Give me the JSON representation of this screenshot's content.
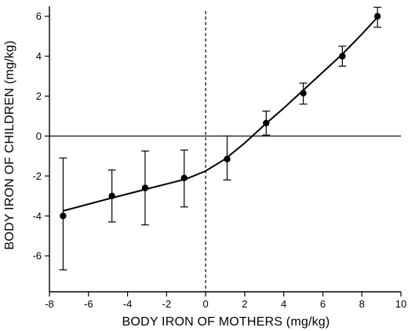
{
  "chart_data": {
    "type": "scatter",
    "xlabel": "BODY IRON OF MOTHERS (mg/kg)",
    "ylabel": "BODY IRON OF CHILDREN (mg/kg)",
    "xlim": [
      -8,
      10
    ],
    "ylim": [
      -7.8,
      6.5
    ],
    "x_ticks": [
      -8,
      -6,
      -4,
      -2,
      0,
      2,
      4,
      6,
      8,
      10
    ],
    "y_ticks": [
      -6,
      -4,
      -2,
      0,
      2,
      4,
      6
    ],
    "x_tick_labels": [
      "-8",
      "-6",
      "-4",
      "-2",
      "0",
      "2",
      "4",
      "6",
      "8",
      "10"
    ],
    "y_tick_labels": [
      "-6",
      "-4",
      "-2",
      "0",
      "2",
      "4",
      "6"
    ],
    "reference_lines": {
      "horizontal_solid_at_y": 0,
      "vertical_dashed_at_x": 0
    },
    "series": [
      {
        "points": [
          {
            "x": -7.3,
            "y": -4.0,
            "err_low": -6.7,
            "err_high": -1.1
          },
          {
            "x": -4.8,
            "y": -3.0,
            "err_low": -4.3,
            "err_high": -1.7
          },
          {
            "x": -3.1,
            "y": -2.6,
            "err_low": -4.45,
            "err_high": -0.75
          },
          {
            "x": -1.1,
            "y": -2.1,
            "err_low": -3.55,
            "err_high": -0.7
          },
          {
            "x": 1.1,
            "y": -1.15,
            "err_low": -2.2,
            "err_high": 0.0
          },
          {
            "x": 3.1,
            "y": 0.65,
            "err_low": 0.05,
            "err_high": 1.25
          },
          {
            "x": 5.0,
            "y": 2.15,
            "err_low": 1.6,
            "err_high": 2.65
          },
          {
            "x": 7.0,
            "y": 4.0,
            "err_low": 3.5,
            "err_high": 4.5
          },
          {
            "x": 8.8,
            "y": 6.0,
            "err_low": 5.45,
            "err_high": 6.45
          }
        ]
      }
    ],
    "fit_curve": [
      {
        "x": -7.3,
        "y": -3.75
      },
      {
        "x": -5.0,
        "y": -3.15
      },
      {
        "x": -3.0,
        "y": -2.65
      },
      {
        "x": -1.0,
        "y": -2.15
      },
      {
        "x": 0.0,
        "y": -1.75
      },
      {
        "x": 1.0,
        "y": -1.15
      },
      {
        "x": 2.0,
        "y": -0.35
      },
      {
        "x": 3.0,
        "y": 0.55
      },
      {
        "x": 4.0,
        "y": 1.4
      },
      {
        "x": 5.0,
        "y": 2.3
      },
      {
        "x": 6.0,
        "y": 3.2
      },
      {
        "x": 7.0,
        "y": 4.1
      },
      {
        "x": 8.0,
        "y": 5.1
      },
      {
        "x": 8.8,
        "y": 5.95
      }
    ],
    "grid": false,
    "legend": "none"
  }
}
